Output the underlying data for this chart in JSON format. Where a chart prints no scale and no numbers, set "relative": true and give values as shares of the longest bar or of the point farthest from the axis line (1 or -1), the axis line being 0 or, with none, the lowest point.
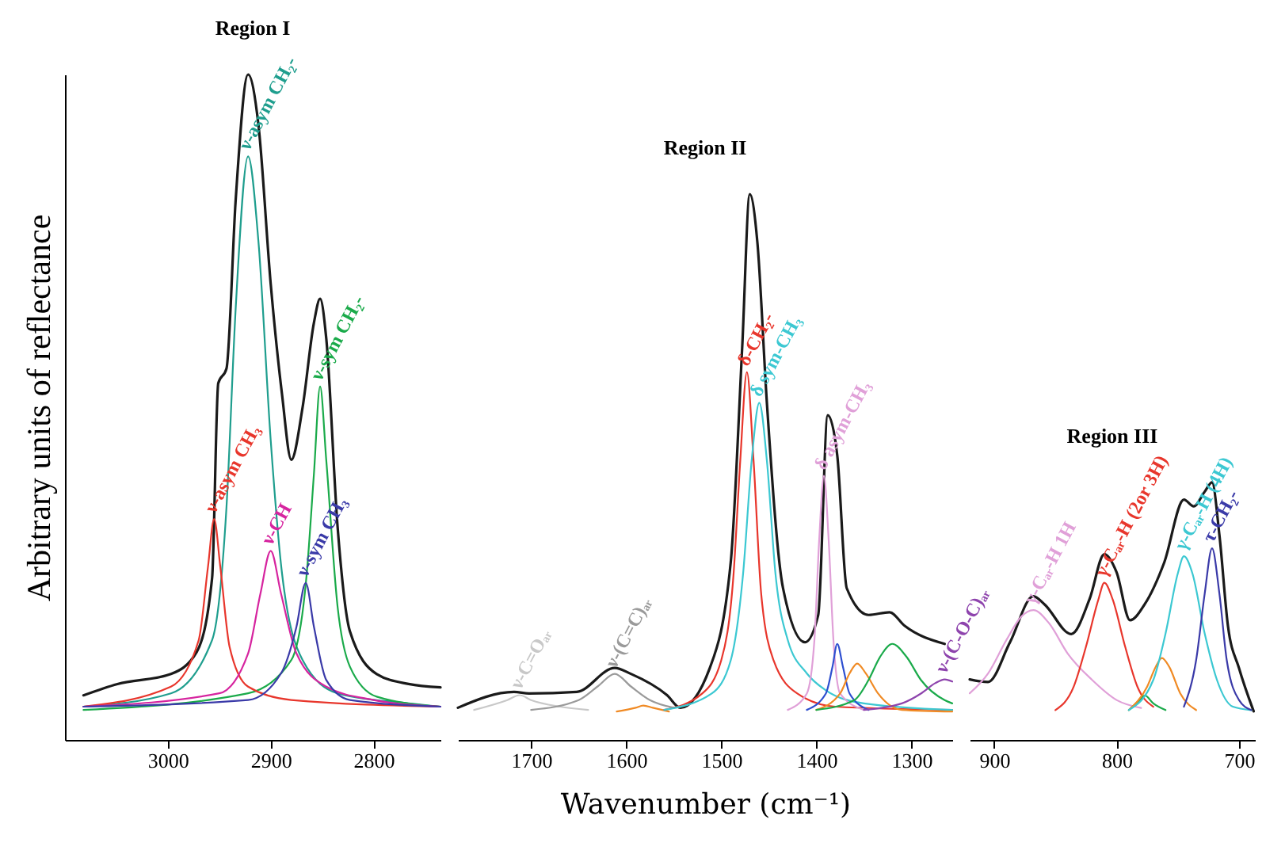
{
  "chart_data": [
    {
      "type": "line",
      "title": "Region I",
      "ylabel": "Arbitrary units of reflectance",
      "relative": true,
      "tick_labels": "x",
      "xlim": [
        3100,
        2735
      ],
      "xticks": [
        3000,
        2900,
        2800
      ],
      "series": [
        {
          "color": "#1a1a1a",
          "x": [
            3082,
            3049,
            2997,
            2972,
            2957,
            2951,
            2943,
            2934,
            2922,
            2912,
            2900,
            2889,
            2880,
            2869,
            2858,
            2852,
            2846,
            2835,
            2823,
            2797,
            2766,
            2735
          ],
          "values": [
            0.067,
            0.084,
            0.099,
            0.132,
            0.243,
            0.536,
            0.558,
            0.813,
            1.0,
            0.925,
            0.685,
            0.519,
            0.421,
            0.5,
            0.627,
            0.663,
            0.603,
            0.32,
            0.163,
            0.099,
            0.084,
            0.079
          ]
        },
        {
          "name": "ν-asym CH₂-",
          "color": "#1f9e8e",
          "x": [
            3082,
            2997,
            2957,
            2943,
            2934,
            2922,
            2912,
            2900,
            2889,
            2869,
            2835,
            2766,
            2735
          ],
          "values": [
            0.05,
            0.07,
            0.15,
            0.35,
            0.65,
            0.877,
            0.75,
            0.45,
            0.25,
            0.12,
            0.07,
            0.055,
            0.05
          ]
        },
        {
          "name": "ν-sym CH₂-",
          "color": "#1aaa4a",
          "x": [
            3082,
            2922,
            2880,
            2865,
            2858,
            2852,
            2846,
            2835,
            2823,
            2797,
            2735
          ],
          "values": [
            0.045,
            0.07,
            0.12,
            0.25,
            0.4,
            0.531,
            0.42,
            0.2,
            0.11,
            0.065,
            0.05
          ]
        },
        {
          "name": "ν-asym CH₃",
          "color": "#e8362c",
          "x": [
            3082,
            2997,
            2970,
            2961,
            2955,
            2949,
            2940,
            2922,
            2880,
            2735
          ],
          "values": [
            0.05,
            0.08,
            0.15,
            0.26,
            0.332,
            0.26,
            0.14,
            0.08,
            0.06,
            0.05
          ]
        },
        {
          "name": "ν-CH",
          "color": "#d6249f",
          "x": [
            3082,
            2950,
            2922,
            2910,
            2900,
            2890,
            2875,
            2846,
            2800,
            2735
          ],
          "values": [
            0.05,
            0.07,
            0.13,
            0.22,
            0.284,
            0.22,
            0.13,
            0.08,
            0.06,
            0.05
          ]
        },
        {
          "name": "ν-sym CH₃",
          "color": "#3a3aa8",
          "x": [
            3082,
            2922,
            2890,
            2875,
            2866,
            2858,
            2846,
            2823,
            2735
          ],
          "values": [
            0.05,
            0.06,
            0.1,
            0.17,
            0.236,
            0.17,
            0.09,
            0.06,
            0.05
          ]
        }
      ]
    },
    {
      "type": "line",
      "title": "Region II",
      "xlabel": "Wavenumber (cm⁻¹)",
      "relative": true,
      "tick_labels": "x",
      "xlim": [
        1777,
        1257
      ],
      "xticks": [
        1700,
        1600,
        1500,
        1400,
        1300
      ],
      "series": [
        {
          "color": "#1a1a1a",
          "x": [
            1777,
            1718,
            1702,
            1652,
            1612,
            1595,
            1557,
            1543,
            1512,
            1490,
            1478,
            1470,
            1462,
            1452,
            1435,
            1412,
            1398,
            1388,
            1378,
            1368,
            1345,
            1323,
            1307,
            1265
          ],
          "values": [
            0.059,
            0.088,
            0.085,
            0.088,
            0.132,
            0.121,
            0.082,
            0.059,
            0.132,
            0.326,
            0.718,
            1.0,
            0.912,
            0.618,
            0.278,
            0.179,
            0.229,
            0.595,
            0.522,
            0.278,
            0.229,
            0.234,
            0.209,
            0.176
          ]
        },
        {
          "name": "ν-C=Oₐᵣ",
          "color": "#c8c8c8",
          "x": [
            1760,
            1725,
            1712,
            1700,
            1670,
            1640
          ],
          "values": [
            0.055,
            0.073,
            0.082,
            0.073,
            0.061,
            0.055
          ]
        },
        {
          "name": "ν-(C=C)ₐᵣ",
          "color": "#9a9a9a",
          "x": [
            1700,
            1650,
            1630,
            1612,
            1595,
            1575,
            1550
          ],
          "values": [
            0.055,
            0.073,
            0.098,
            0.121,
            0.098,
            0.073,
            0.059
          ]
        },
        {
          "color": "#f08a24",
          "x": [
            1610,
            1590,
            1582,
            1572,
            1555
          ],
          "values": [
            0.052,
            0.059,
            0.063,
            0.059,
            0.052
          ]
        },
        {
          "name": "δ-CH₂-",
          "color": "#e8362c",
          "x": [
            1560,
            1520,
            1500,
            1487,
            1480,
            1473,
            1466,
            1458,
            1445,
            1420,
            1380,
            1257
          ],
          "values": [
            0.055,
            0.085,
            0.146,
            0.305,
            0.512,
            0.674,
            0.512,
            0.268,
            0.146,
            0.085,
            0.061,
            0.055
          ]
        },
        {
          "name": "δ sym-CH₃",
          "color": "#3cc8d2",
          "x": [
            1560,
            1510,
            1490,
            1477,
            1468,
            1460,
            1452,
            1443,
            1430,
            1410,
            1390,
            1350,
            1257
          ],
          "values": [
            0.055,
            0.085,
            0.146,
            0.305,
            0.512,
            0.618,
            0.512,
            0.305,
            0.183,
            0.122,
            0.091,
            0.067,
            0.055
          ]
        },
        {
          "name": "δ asym-CH₃",
          "color": "#e0a0d8",
          "x": [
            1430,
            1410,
            1402,
            1397,
            1392,
            1387,
            1382,
            1375,
            1350
          ],
          "values": [
            0.055,
            0.085,
            0.183,
            0.366,
            0.484,
            0.366,
            0.183,
            0.085,
            0.055
          ]
        },
        {
          "color": "#2e4fd0",
          "x": [
            1410,
            1390,
            1383,
            1378,
            1372,
            1365,
            1345
          ],
          "values": [
            0.055,
            0.085,
            0.134,
            0.176,
            0.134,
            0.085,
            0.055
          ]
        },
        {
          "color": "#f08a24",
          "x": [
            1400,
            1375,
            1365,
            1357,
            1348,
            1335,
            1310,
            1257
          ],
          "values": [
            0.055,
            0.085,
            0.122,
            0.14,
            0.122,
            0.085,
            0.055,
            0.052
          ]
        },
        {
          "color": "#1aaa4a",
          "x": [
            1400,
            1360,
            1345,
            1333,
            1320,
            1305,
            1290,
            1265,
            1257
          ],
          "values": [
            0.055,
            0.073,
            0.11,
            0.152,
            0.176,
            0.152,
            0.11,
            0.073,
            0.067
          ]
        },
        {
          "name": "ν-(C-O-C)ₐᵣ",
          "color": "#8e44ad",
          "x": [
            1350,
            1310,
            1290,
            1275,
            1265,
            1257
          ],
          "values": [
            0.055,
            0.067,
            0.085,
            0.104,
            0.111,
            0.107
          ]
        }
      ]
    },
    {
      "type": "line",
      "title": "Region III",
      "relative": true,
      "tick_labels": "x",
      "xlim": [
        920,
        687
      ],
      "xticks": [
        900,
        800,
        700
      ],
      "series": [
        {
          "color": "#1a1a1a",
          "x": [
            920,
            905,
            887,
            868,
            859,
            837,
            822,
            810,
            800,
            789,
            777,
            761,
            745,
            737,
            728,
            722,
            716,
            709,
            700,
            688
          ],
          "values": [
            0.235,
            0.225,
            0.38,
            0.558,
            0.527,
            0.411,
            0.548,
            0.721,
            0.651,
            0.465,
            0.527,
            0.69,
            0.933,
            0.907,
            0.964,
            1.0,
            0.796,
            0.442,
            0.279,
            0.111
          ]
        },
        {
          "name": "γ-Cₐᵣ-H 1H",
          "color": "#e0a0d8",
          "x": [
            920,
            905,
            890,
            878,
            868,
            855,
            840,
            820,
            800,
            780
          ],
          "values": [
            0.181,
            0.258,
            0.388,
            0.478,
            0.504,
            0.452,
            0.336,
            0.233,
            0.155,
            0.124
          ]
        },
        {
          "name": "γ-Cₐᵣ-H (2or 3H)",
          "color": "#e8362c",
          "x": [
            850,
            835,
            825,
            815,
            810,
            803,
            793,
            783,
            770
          ],
          "values": [
            0.116,
            0.207,
            0.362,
            0.543,
            0.61,
            0.543,
            0.362,
            0.207,
            0.129
          ]
        },
        {
          "color": "#1aaa4a",
          "x": [
            790,
            780,
            777,
            770,
            760
          ],
          "values": [
            0.116,
            0.16,
            0.173,
            0.142,
            0.116
          ]
        },
        {
          "color": "#f08a24",
          "x": [
            790,
            775,
            768,
            763,
            757,
            748,
            735
          ],
          "values": [
            0.116,
            0.207,
            0.284,
            0.318,
            0.284,
            0.181,
            0.116
          ]
        },
        {
          "name": "γ-Cₐᵣ-H (4H)",
          "color": "#3cc8d2",
          "x": [
            790,
            770,
            760,
            750,
            745,
            738,
            728,
            718,
            705,
            690
          ],
          "values": [
            0.116,
            0.233,
            0.413,
            0.646,
            0.713,
            0.646,
            0.413,
            0.233,
            0.129,
            0.116
          ]
        },
        {
          "name": "τ-CH₂-",
          "color": "#3a3aa8",
          "x": [
            745,
            735,
            728,
            722,
            716,
            710,
            700,
            690
          ],
          "values": [
            0.129,
            0.31,
            0.568,
            0.744,
            0.568,
            0.31,
            0.155,
            0.116
          ]
        }
      ]
    }
  ]
}
